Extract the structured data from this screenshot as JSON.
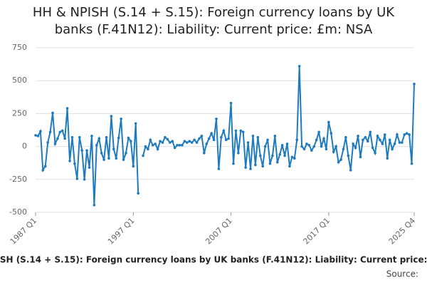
{
  "chart_data": {
    "type": "line",
    "title": "HH & NPISH (S.14 + S.15): Foreign currency loans by UK banks (F.41N12): Liability: Current price: £m: NSA",
    "footer": "HH & NPISH (S.14 + S.15): Foreign currency loans by UK banks (F.41N12): Liability: Current price: £m: NSA",
    "source": "Source:",
    "categories": [
      "1987 Q1",
      null,
      null,
      null,
      null,
      null,
      null,
      null,
      null,
      null,
      null,
      null,
      null,
      null,
      null,
      null,
      null,
      null,
      null,
      null,
      null,
      null,
      null,
      null,
      null,
      null,
      null,
      null,
      null,
      null,
      null,
      null,
      null,
      null,
      null,
      null,
      null,
      null,
      null,
      null,
      "1997 Q1",
      null,
      null,
      null,
      null,
      null,
      null,
      null,
      null,
      null,
      null,
      null,
      null,
      null,
      null,
      null,
      null,
      null,
      null,
      null,
      null,
      null,
      null,
      null,
      null,
      null,
      null,
      null,
      null,
      null,
      null,
      null,
      null,
      null,
      null,
      null,
      null,
      null,
      null,
      null,
      "2007 Q1",
      null,
      null,
      null,
      null,
      null,
      null,
      null,
      null,
      null,
      null,
      null,
      null,
      null,
      null,
      null,
      null,
      null,
      null,
      null,
      null,
      null,
      null,
      null,
      null,
      null,
      null,
      null,
      null,
      null,
      null,
      null,
      null,
      null,
      null,
      null,
      null,
      null,
      null,
      null,
      "2017 Q1",
      null,
      null,
      null,
      null,
      null,
      null,
      null,
      null,
      null,
      null,
      null,
      null,
      null,
      null,
      null,
      null,
      null,
      null,
      null,
      null,
      null,
      null,
      null,
      null,
      null,
      null,
      null,
      null,
      null,
      null,
      null,
      null,
      null,
      null,
      "2025 Q4"
    ],
    "series": [
      {
        "name": "Value",
        "color": "#1f7bbf",
        "values": [
          85,
          80,
          115,
          -180,
          -150,
          30,
          110,
          255,
          20,
          60,
          110,
          120,
          60,
          290,
          -110,
          70,
          -130,
          -245,
          70,
          -30,
          -250,
          -30,
          -160,
          80,
          -445,
          10,
          60,
          -50,
          -100,
          70,
          -90,
          230,
          -20,
          -90,
          65,
          210,
          -100,
          -50,
          65,
          40,
          -150,
          175,
          -355,
          null,
          -70,
          0,
          -20,
          50,
          10,
          20,
          -20,
          40,
          30,
          70,
          55,
          30,
          40,
          -10,
          10,
          10,
          10,
          40,
          30,
          40,
          30,
          50,
          30,
          60,
          80,
          -50,
          20,
          60,
          100,
          50,
          210,
          -170,
          70,
          120,
          50,
          60,
          330,
          -130,
          120,
          -50,
          120,
          110,
          -160,
          30,
          -170,
          80,
          -140,
          70,
          -70,
          -150,
          0,
          50,
          -130,
          -70,
          80,
          -120,
          -60,
          10,
          -70,
          20,
          -150,
          -80,
          -90,
          50,
          610,
          0,
          -20,
          20,
          10,
          -30,
          0,
          50,
          110,
          0,
          60,
          -20,
          185,
          100,
          -40,
          0,
          -120,
          -100,
          -20,
          70,
          -70,
          -180,
          20,
          -10,
          80,
          -80,
          50,
          70,
          40,
          110,
          -10,
          -50,
          80,
          50,
          20,
          90,
          -90,
          50,
          -20,
          20,
          90,
          30,
          30,
          90,
          100,
          90,
          -130,
          475
        ]
      }
    ],
    "ylim": [
      -500,
      750
    ],
    "yticks": [
      -500,
      -250,
      0,
      250,
      500,
      750
    ],
    "grid": true
  }
}
